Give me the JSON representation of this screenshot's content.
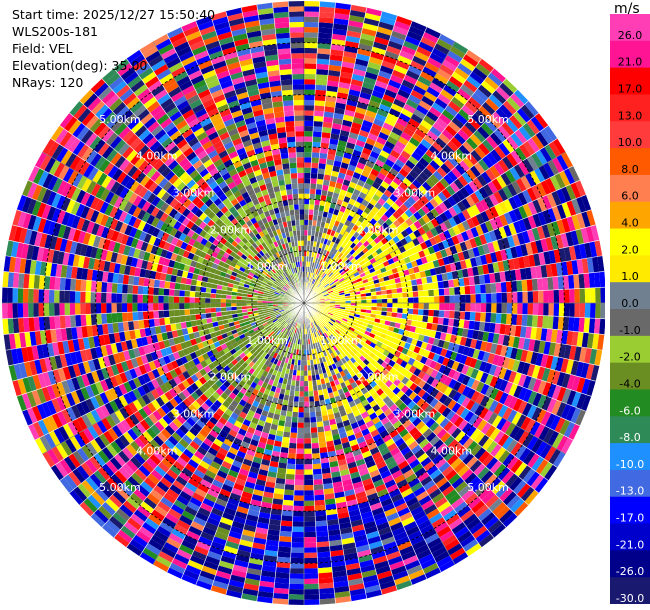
{
  "info": {
    "start_time": "Start time: 2025/12/27 15:50:40",
    "instrument": "WLS200s-181",
    "field": "Field: VEL",
    "elevation": "Elevation(deg): 35.00",
    "nrays": "NRays: 120"
  },
  "chart_data": {
    "type": "heatmap",
    "projection": "polar-ppi",
    "field": "VEL",
    "n_rays": 120,
    "range_rings_km": [
      1.0,
      2.0,
      3.0,
      4.0,
      5.0
    ],
    "ring_labels": [
      "1.00km",
      "2.00km",
      "3.00km",
      "4.00km",
      "5.00km"
    ],
    "max_range_km": 5.8,
    "colorbar": {
      "unit": "m/s",
      "ticks": [
        "26.0",
        "21.0",
        "17.0",
        "13.0",
        "10.0",
        "8.0",
        "6.0",
        "4.0",
        "2.0",
        "1.0",
        "0.0",
        "-1.0",
        "-2.0",
        "-4.0",
        "-6.0",
        "-8.0",
        "-10.0",
        "-13.0",
        "-17.0",
        "-21.0",
        "-26.0",
        "-30.0"
      ],
      "bins": [
        {
          "min": 26,
          "max": 30,
          "color": "#ff3eb5"
        },
        {
          "min": 21,
          "max": 26,
          "color": "#ff1493"
        },
        {
          "min": 17,
          "max": 21,
          "color": "#ff0000"
        },
        {
          "min": 13,
          "max": 17,
          "color": "#ff2020"
        },
        {
          "min": 10,
          "max": 13,
          "color": "#ff3b3b"
        },
        {
          "min": 8,
          "max": 10,
          "color": "#ff5a00"
        },
        {
          "min": 6,
          "max": 8,
          "color": "#ff7f50"
        },
        {
          "min": 4,
          "max": 6,
          "color": "#ffa500"
        },
        {
          "min": 2,
          "max": 4,
          "color": "#ffff00"
        },
        {
          "min": 1,
          "max": 2,
          "color": "#ffea00"
        },
        {
          "min": 0,
          "max": 1,
          "color": "#708090"
        },
        {
          "min": -1,
          "max": 0,
          "color": "#696969"
        },
        {
          "min": -2,
          "max": -1,
          "color": "#9acd32"
        },
        {
          "min": -4,
          "max": -2,
          "color": "#6b8e23"
        },
        {
          "min": -6,
          "max": -4,
          "color": "#228b22"
        },
        {
          "min": -8,
          "max": -6,
          "color": "#2e8b57"
        },
        {
          "min": -10,
          "max": -8,
          "color": "#1e90ff"
        },
        {
          "min": -13,
          "max": -10,
          "color": "#4169e1"
        },
        {
          "min": -17,
          "max": -13,
          "color": "#0000ff"
        },
        {
          "min": -21,
          "max": -17,
          "color": "#0000cd"
        },
        {
          "min": -26,
          "max": -21,
          "color": "#00008b"
        },
        {
          "min": -30,
          "max": -26,
          "color": "#191970"
        }
      ]
    }
  }
}
